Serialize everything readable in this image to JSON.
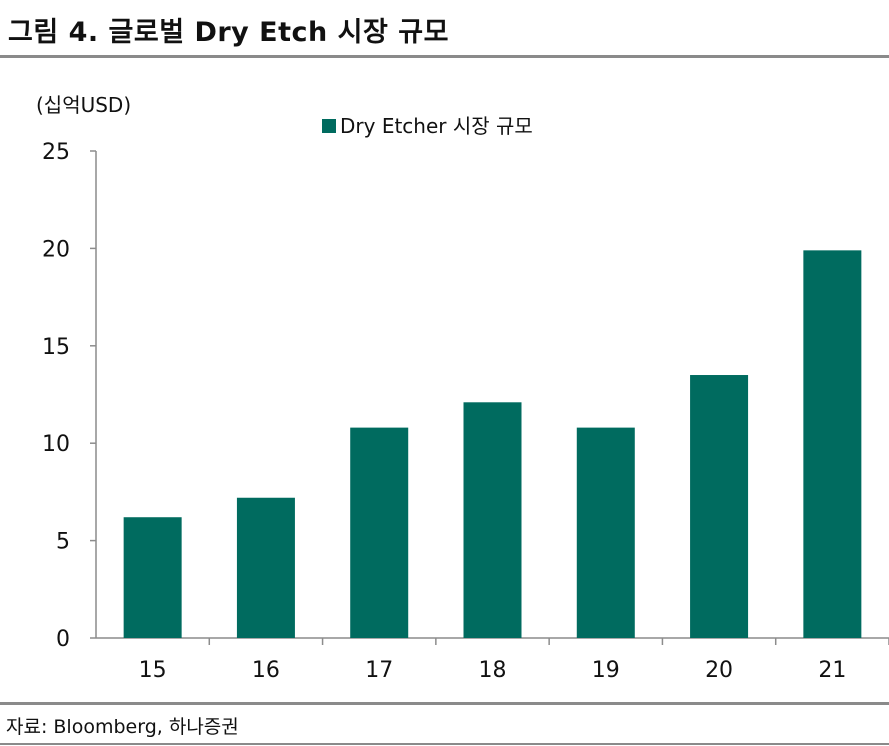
{
  "figure": {
    "title": "그림 4. 글로벌 Dry Etch 시장 규모",
    "source": "자료: Bloomberg, 하나증권"
  },
  "colors": {
    "bar": "#006b5f",
    "axis": "#8c8c8c",
    "rule": "#8a8a8a"
  },
  "chart_data": {
    "type": "bar",
    "title": "",
    "unit_label": "(십억USD)",
    "xlabel": "",
    "ylabel": "",
    "categories": [
      "15",
      "16",
      "17",
      "18",
      "19",
      "20",
      "21"
    ],
    "series": [
      {
        "name": "Dry Etcher 시장 규모",
        "values": [
          6.2,
          7.2,
          10.8,
          12.1,
          10.8,
          13.5,
          19.9
        ]
      }
    ],
    "ylim": [
      0,
      25
    ],
    "yticks": [
      0,
      5,
      10,
      15,
      20,
      25
    ],
    "grid": false,
    "legend_position": "top-center"
  }
}
